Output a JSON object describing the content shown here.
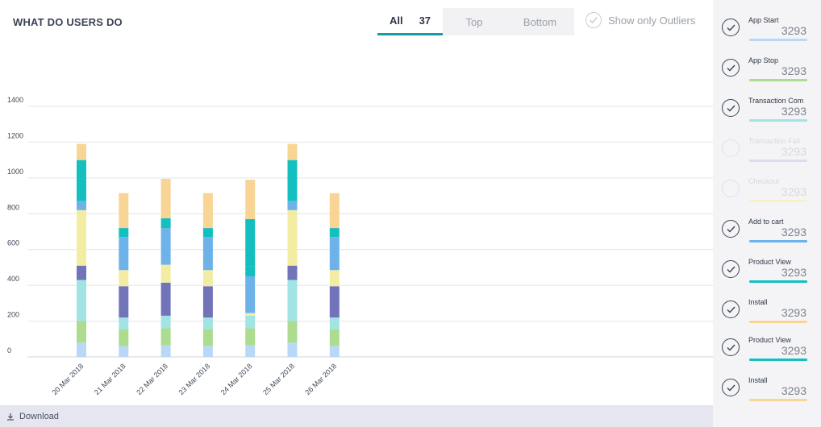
{
  "title": "WHAT DO USERS DO",
  "filter_tabs": {
    "all_label": "All",
    "all_count": "37",
    "top_label": "Top",
    "bottom_label": "Bottom"
  },
  "outliers_label": "Show only Outliers",
  "download_label": "Download",
  "legend": [
    {
      "label": "App Start",
      "value": "3293",
      "color": "#b9d8f7",
      "active": true
    },
    {
      "label": "App Stop",
      "value": "3293",
      "color": "#addc90",
      "active": true
    },
    {
      "label": "Transaction Com",
      "value": "3293",
      "color": "#a1e4e3",
      "active": true
    },
    {
      "label": "Transaction Fail",
      "value": "3293",
      "color": "#dcdcf0",
      "active": false
    },
    {
      "label": "Checkout",
      "value": "3293",
      "color": "#f8f1c8",
      "active": false
    },
    {
      "label": "Add to cart",
      "value": "3293",
      "color": "#6db3ea",
      "active": true
    },
    {
      "label": "Product View",
      "value": "3293",
      "color": "#14bfc0",
      "active": true
    },
    {
      "label": "Install",
      "value": "3293",
      "color": "#f8d595",
      "active": true
    },
    {
      "label": "Product View",
      "value": "3293",
      "color": "#14bfc0",
      "active": true
    },
    {
      "label": "Install",
      "value": "3293",
      "color": "#f8d595",
      "active": true
    }
  ],
  "chart_data": {
    "type": "bar",
    "stacked": true,
    "categories": [
      "20 Mar 2018",
      "21 Mar 2018",
      "22 Mar 2018",
      "23 Mar 2018",
      "24 Mar 2018",
      "25 Mar 2018",
      "26 Mar 2018"
    ],
    "ylim": [
      0,
      1400
    ],
    "yticks": [
      "0",
      "200",
      "400",
      "600",
      "800",
      "1000",
      "1200",
      "1400"
    ],
    "grid": true,
    "series": [
      {
        "color": "#b9d8f7",
        "values": [
          80,
          60,
          65,
          60,
          65,
          80,
          60
        ]
      },
      {
        "color": "#addc90",
        "values": [
          120,
          95,
          95,
          95,
          95,
          120,
          95
        ]
      },
      {
        "color": "#a1e4e3",
        "values": [
          230,
          65,
          70,
          65,
          70,
          230,
          65
        ]
      },
      {
        "color": "#7174b9",
        "values": [
          80,
          175,
          185,
          175,
          0,
          80,
          175
        ]
      },
      {
        "color": "#f3eda3",
        "values": [
          310,
          90,
          100,
          90,
          15,
          310,
          90
        ]
      },
      {
        "color": "#6db3ea",
        "values": [
          50,
          185,
          205,
          185,
          205,
          50,
          185
        ]
      },
      {
        "color": "#14bfc0",
        "values": [
          230,
          50,
          55,
          50,
          55,
          230,
          50
        ]
      },
      {
        "color": "#14bfc0",
        "values": [
          0,
          0,
          0,
          0,
          265,
          0,
          0
        ]
      },
      {
        "color": "#f8d595",
        "values": [
          90,
          195,
          220,
          195,
          220,
          90,
          195
        ]
      }
    ]
  }
}
